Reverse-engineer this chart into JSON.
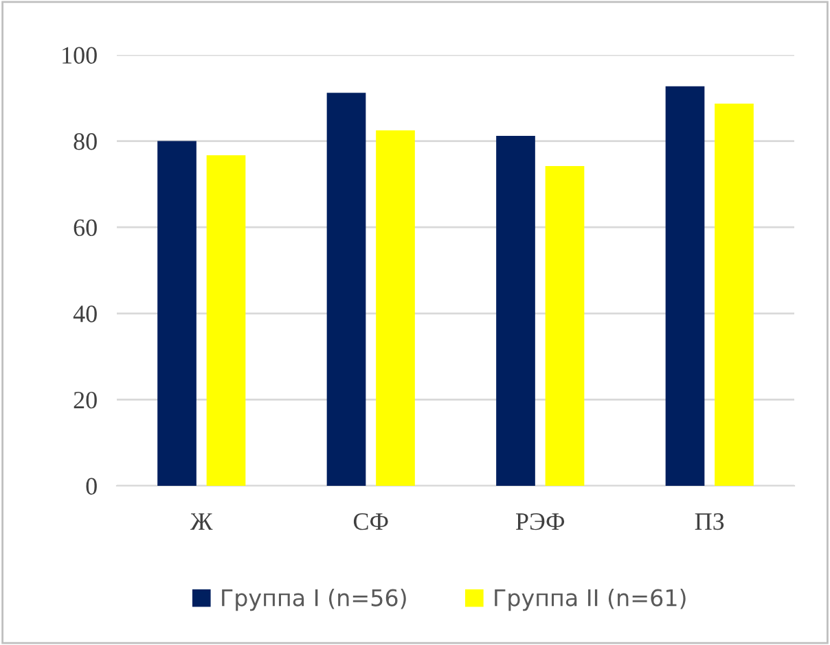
{
  "chart_data": {
    "type": "bar",
    "categories": [
      "Ж",
      "СФ",
      "РЭФ",
      "ПЗ"
    ],
    "series": [
      {
        "name": "Группа I (n=56)",
        "color": "#001f5f",
        "values": [
          80.0,
          91.2,
          81.2,
          92.7
        ]
      },
      {
        "name": "Группа II (n=61)",
        "color": "#ffff00",
        "values": [
          76.7,
          82.5,
          74.2,
          88.7
        ]
      }
    ],
    "ylim": [
      0,
      100
    ],
    "yticks": [
      0,
      20,
      40,
      60,
      80,
      100
    ],
    "grid": "y",
    "legend": "bottom"
  }
}
